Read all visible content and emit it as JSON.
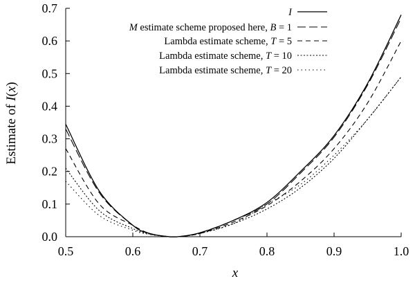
{
  "chart_data": {
    "type": "line",
    "xlabel": "x",
    "ylabel": "Estimate of I(x)",
    "xlim": [
      0.5,
      1.0
    ],
    "ylim": [
      0.0,
      0.7
    ],
    "x_ticks": [
      "0.5",
      "0.6",
      "0.7",
      "0.8",
      "0.9",
      "1.0"
    ],
    "y_ticks": [
      "0.0",
      "0.1",
      "0.2",
      "0.3",
      "0.4",
      "0.5",
      "0.6",
      "0.7"
    ],
    "grid": false,
    "legend_position": "top-right",
    "x": [
      0.5,
      0.55,
      0.6,
      0.625,
      0.65,
      0.667,
      0.7,
      0.75,
      0.8,
      0.85,
      0.9,
      0.95,
      1.0
    ],
    "series": [
      {
        "name": "I",
        "style": "solid",
        "values": [
          0.345,
          0.14,
          0.035,
          0.01,
          0.001,
          0.0,
          0.012,
          0.05,
          0.105,
          0.2,
          0.31,
          0.47,
          0.68
        ]
      },
      {
        "name": "M estimate scheme proposed here, B = 1",
        "style": "dashed-long",
        "values": [
          0.33,
          0.135,
          0.035,
          0.01,
          0.001,
          0.0,
          0.012,
          0.05,
          0.1,
          0.195,
          0.305,
          0.465,
          0.67
        ]
      },
      {
        "name": "Lambda estimate scheme, T = 5",
        "style": "dashed",
        "values": [
          0.27,
          0.1,
          0.035,
          0.01,
          0.001,
          0.0,
          0.01,
          0.045,
          0.095,
          0.17,
          0.27,
          0.41,
          0.6
        ]
      },
      {
        "name": "Lambda estimate scheme, T = 10",
        "style": "dotted-dense",
        "values": [
          0.21,
          0.08,
          0.025,
          0.008,
          0.001,
          0.0,
          0.01,
          0.04,
          0.085,
          0.15,
          0.24,
          0.36,
          0.49
        ]
      },
      {
        "name": "Lambda estimate scheme, T = 20",
        "style": "dotted-sparse",
        "values": [
          0.17,
          0.065,
          0.02,
          0.007,
          0.001,
          0.0,
          0.01,
          0.04,
          0.1,
          0.16,
          0.25,
          0.36,
          0.49
        ]
      }
    ]
  }
}
